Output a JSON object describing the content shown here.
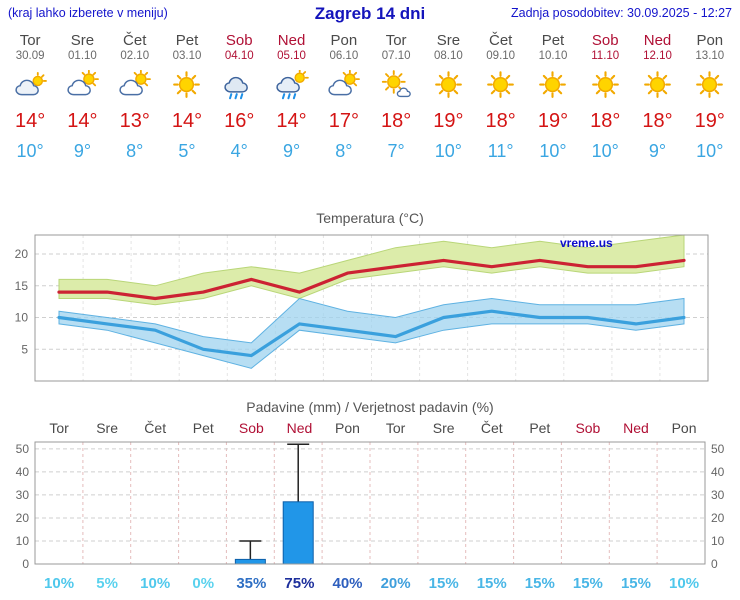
{
  "header": {
    "hint": "(kraj lahko izberete v meniju)",
    "title": "Zagreb 14 dni",
    "updated": "Zadnja posodobitev: 30.09.2025 - 12:27"
  },
  "days": [
    {
      "name": "Tor",
      "date": "30.09",
      "weekend": false,
      "icon": "cloudy",
      "tmax": "14",
      "tmin": "10",
      "prob": "10%",
      "prob_color": "#4fc8ec"
    },
    {
      "name": "Sre",
      "date": "01.10",
      "weekend": false,
      "icon": "partly-cloudy",
      "tmax": "14",
      "tmin": "9",
      "prob": "5%",
      "prob_color": "#5ad2ee"
    },
    {
      "name": "Čet",
      "date": "02.10",
      "weekend": false,
      "icon": "partly-cloudy",
      "tmax": "13",
      "tmin": "8",
      "prob": "10%",
      "prob_color": "#4fc8ec"
    },
    {
      "name": "Pet",
      "date": "03.10",
      "weekend": false,
      "icon": "sunny",
      "tmax": "14",
      "tmin": "5",
      "prob": "0%",
      "prob_color": "#5ad2ee"
    },
    {
      "name": "Sob",
      "date": "04.10",
      "weekend": true,
      "icon": "rain",
      "tmax": "16",
      "tmin": "4",
      "prob": "35%",
      "prob_color": "#2e6fc4"
    },
    {
      "name": "Ned",
      "date": "05.10",
      "weekend": true,
      "icon": "rain-sun",
      "tmax": "14",
      "tmin": "9",
      "prob": "75%",
      "prob_color": "#1d2f9c"
    },
    {
      "name": "Pon",
      "date": "06.10",
      "weekend": false,
      "icon": "partly-cloudy",
      "tmax": "17",
      "tmin": "8",
      "prob": "40%",
      "prob_color": "#2e5fbe"
    },
    {
      "name": "Tor",
      "date": "07.10",
      "weekend": false,
      "icon": "mostly-sunny",
      "tmax": "18",
      "tmin": "7",
      "prob": "20%",
      "prob_color": "#3f9fdc"
    },
    {
      "name": "Sre",
      "date": "08.10",
      "weekend": false,
      "icon": "sunny",
      "tmax": "19",
      "tmin": "10",
      "prob": "15%",
      "prob_color": "#49b6e6"
    },
    {
      "name": "Čet",
      "date": "09.10",
      "weekend": false,
      "icon": "sunny",
      "tmax": "18",
      "tmin": "11",
      "prob": "15%",
      "prob_color": "#49b6e6"
    },
    {
      "name": "Pet",
      "date": "10.10",
      "weekend": false,
      "icon": "sunny",
      "tmax": "19",
      "tmin": "10",
      "prob": "15%",
      "prob_color": "#49b6e6"
    },
    {
      "name": "Sob",
      "date": "11.10",
      "weekend": true,
      "icon": "sunny",
      "tmax": "18",
      "tmin": "10",
      "prob": "15%",
      "prob_color": "#49b6e6"
    },
    {
      "name": "Ned",
      "date": "12.10",
      "weekend": true,
      "icon": "sunny",
      "tmax": "18",
      "tmin": "9",
      "prob": "15%",
      "prob_color": "#49b6e6"
    },
    {
      "name": "Pon",
      "date": "13.10",
      "weekend": false,
      "icon": "sunny",
      "tmax": "19",
      "tmin": "10",
      "prob": "10%",
      "prob_color": "#4fc8ec"
    }
  ],
  "chart_data": [
    {
      "type": "line",
      "title": "Temperatura (°C)",
      "watermark": "vreme.us",
      "x_labels": [
        "Tor 30.09",
        "Sre 01.10",
        "Čet 02.10",
        "Pet 03.10",
        "Sob 04.10",
        "Ned 05.10",
        "Pon 06.10",
        "Tor 07.10",
        "Sre 08.10",
        "Čet 09.10",
        "Pet 10.10",
        "Sob 11.10",
        "Ned 12.10",
        "Pon 13.10"
      ],
      "ylim": [
        0,
        23
      ],
      "yticks": [
        5,
        10,
        15,
        20
      ],
      "grid": true,
      "series": [
        {
          "name": "tmax",
          "color": "#cc2233",
          "values": [
            14,
            14,
            13,
            14,
            16,
            14,
            17,
            18,
            19,
            18,
            19,
            18,
            18,
            19
          ]
        },
        {
          "name": "tmax_range_upper",
          "color": "#dcecaa",
          "values": [
            16,
            16,
            15,
            17,
            18,
            17,
            19,
            21,
            22,
            21,
            22,
            21,
            22,
            23
          ]
        },
        {
          "name": "tmax_range_lower",
          "color": "#dcecaa",
          "values": [
            13,
            13,
            12,
            13,
            15,
            13,
            16,
            17,
            18,
            17,
            18,
            17,
            17,
            18
          ]
        },
        {
          "name": "tmin",
          "color": "#3aa0dd",
          "values": [
            10,
            9,
            8,
            5,
            4,
            9,
            8,
            7,
            10,
            11,
            10,
            10,
            9,
            10
          ]
        },
        {
          "name": "tmin_range_upper",
          "color": "#9fd3ef",
          "values": [
            11,
            10,
            9,
            7,
            6,
            13,
            11,
            10,
            12,
            13,
            12,
            12,
            12,
            13
          ]
        },
        {
          "name": "tmin_range_lower",
          "color": "#9fd3ef",
          "values": [
            9,
            8,
            6,
            4,
            2,
            8,
            7,
            6,
            8,
            9,
            9,
            9,
            8,
            9
          ]
        }
      ]
    },
    {
      "type": "bar",
      "title": "Padavine (mm) / Verjetnost padavin (%)",
      "x_labels": [
        "Tor",
        "Sre",
        "Čet",
        "Pet",
        "Sob",
        "Ned",
        "Pon",
        "Tor",
        "Sre",
        "Čet",
        "Pet",
        "Sob",
        "Ned",
        "Pon"
      ],
      "ylim": [
        0,
        53
      ],
      "yticks": [
        0,
        10,
        20,
        30,
        40,
        50
      ],
      "bar_color": "#2196e8",
      "precip_mm": [
        0,
        0,
        0,
        0,
        2,
        27,
        0,
        0,
        0,
        0,
        0,
        0,
        0,
        0
      ],
      "precip_max_mm": [
        0,
        0,
        0,
        0,
        10,
        52,
        0,
        0,
        0,
        0,
        0,
        0,
        0,
        0
      ],
      "probability_pct": [
        10,
        5,
        10,
        0,
        35,
        75,
        40,
        20,
        15,
        15,
        15,
        15,
        15,
        10
      ]
    }
  ]
}
